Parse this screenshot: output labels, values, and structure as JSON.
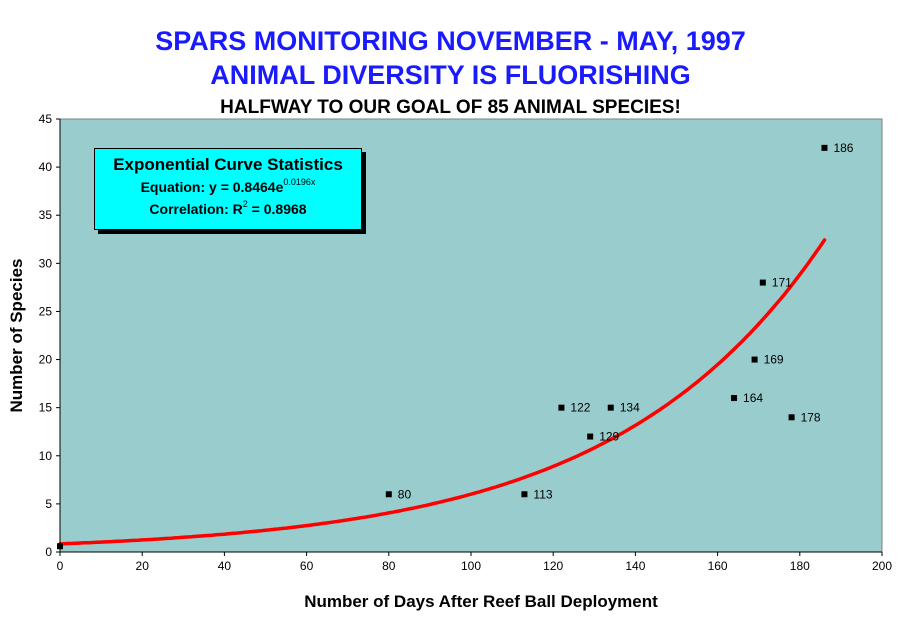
{
  "header": {
    "title_line1": "SPARS MONITORING NOVEMBER - MAY, 1997",
    "title_line2": "ANIMAL DIVERSITY IS FLUORISHING",
    "subtitle": "HALFWAY TO OUR GOAL OF 85 ANIMAL SPECIES!"
  },
  "stats_box": {
    "title": "Exponential Curve Statistics",
    "equation_prefix": "Equation: y = 0.8464e",
    "equation_exponent": "0.0196x",
    "correlation_prefix": "Correlation: R",
    "correlation_exponent": "2",
    "correlation_suffix": " = 0.8968"
  },
  "colors": {
    "plot_background": "#99cccc",
    "trendline": "#ff0000",
    "marker": "#000000",
    "title": "#1a1aff"
  },
  "chart_data": {
    "type": "scatter",
    "xlabel": "Number of Days After Reef Ball Deployment",
    "ylabel": "Number of Species",
    "xlim": [
      0,
      200
    ],
    "ylim": [
      0,
      45
    ],
    "xticks": [
      0,
      20,
      40,
      60,
      80,
      100,
      120,
      140,
      160,
      180,
      200
    ],
    "yticks": [
      0,
      5,
      10,
      15,
      20,
      25,
      30,
      35,
      40,
      45
    ],
    "grid": false,
    "points": [
      {
        "x": 0,
        "y": 0.6,
        "label": ""
      },
      {
        "x": 80,
        "y": 6,
        "label": "80"
      },
      {
        "x": 113,
        "y": 6,
        "label": "113"
      },
      {
        "x": 122,
        "y": 15,
        "label": "122"
      },
      {
        "x": 129,
        "y": 12,
        "label": "129"
      },
      {
        "x": 134,
        "y": 15,
        "label": "134"
      },
      {
        "x": 164,
        "y": 16,
        "label": "164"
      },
      {
        "x": 169,
        "y": 20,
        "label": "169"
      },
      {
        "x": 171,
        "y": 28,
        "label": "171"
      },
      {
        "x": 178,
        "y": 14,
        "label": "178"
      },
      {
        "x": 186,
        "y": 42,
        "label": "186"
      }
    ],
    "trendline": {
      "type": "exponential",
      "a": 0.8464,
      "b": 0.0196,
      "x_range": [
        0,
        186
      ]
    }
  }
}
